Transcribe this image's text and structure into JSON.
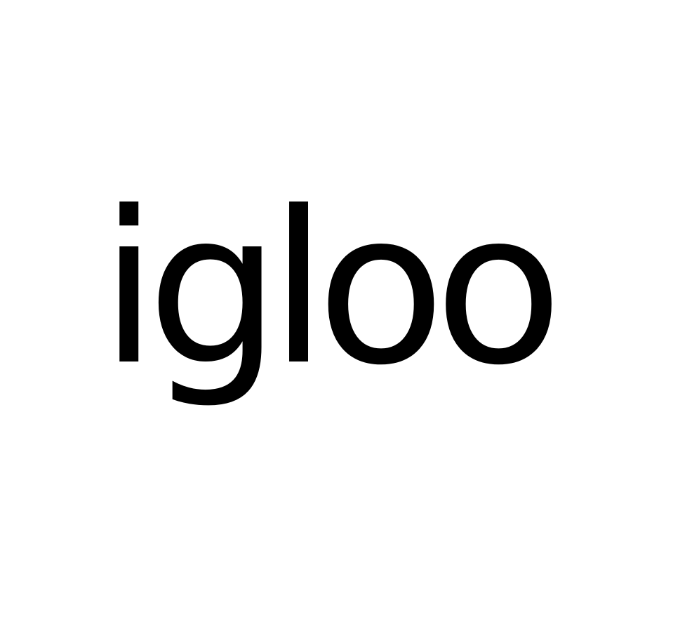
{
  "word": "igloo",
  "colors": {
    "text": "#000000",
    "background": "#ffffff"
  }
}
